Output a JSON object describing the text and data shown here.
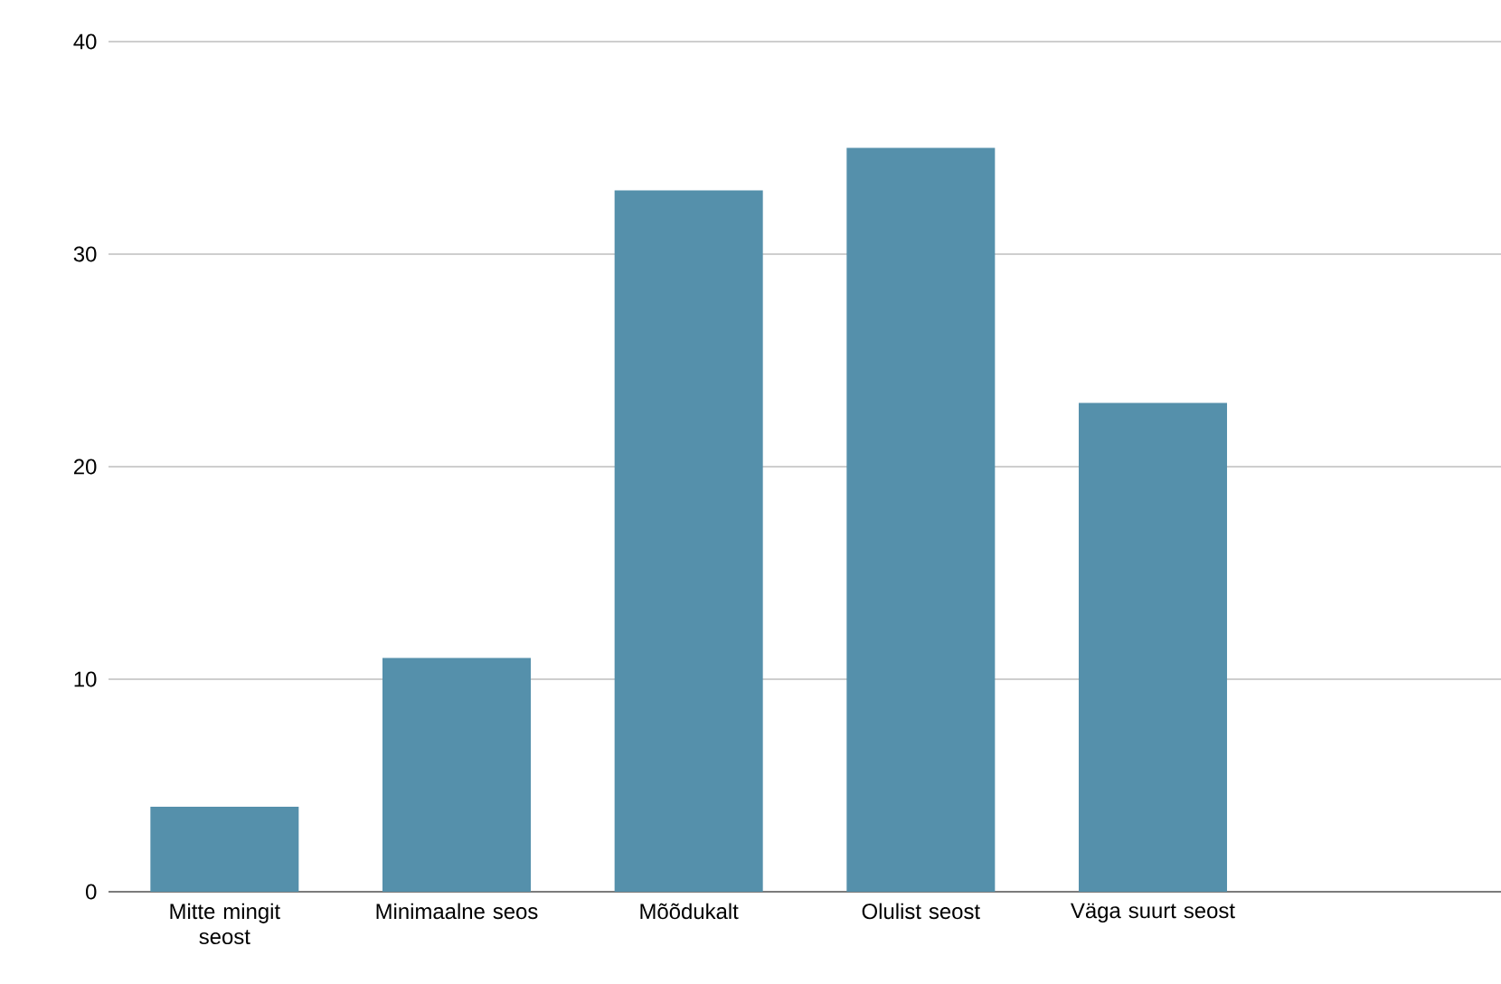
{
  "chart_data": {
    "type": "bar",
    "categories": [
      "Mitte mingit seost",
      "Minimaalne seos",
      "Mõõdukalt",
      "Olulist seost",
      "Väga suurt seost",
      null
    ],
    "values": [
      4,
      11,
      33,
      35,
      23,
      null
    ],
    "color": "#5590ab",
    "ylim": [
      0,
      40
    ],
    "yticks": [
      0,
      10,
      20,
      30,
      40
    ],
    "grid": "y"
  }
}
